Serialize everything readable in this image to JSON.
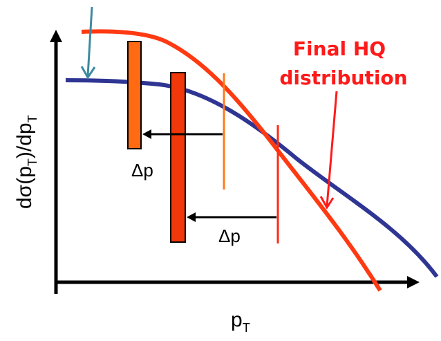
{
  "diagram": {
    "y_axis_label": {
      "prefix": "dσ(p",
      "sub1": "T",
      "mid": ")/dp",
      "sub2": "T"
    },
    "x_axis_label": {
      "main": "p",
      "sub": "T"
    },
    "final_label": {
      "line1": "Final HQ",
      "line2": "distribution"
    },
    "delta_p_small": "Δp",
    "delta_p_large": "Δp",
    "colors": {
      "blue_curve": "#2f3593",
      "red_curve": "#ff3a12",
      "orange": "#ff6a12",
      "dark_red_bar": "#f0380a",
      "teal_arrow": "#3d8aa0",
      "axis": "#000000",
      "text": "#000000",
      "final_label": "#ff1a1a"
    }
  }
}
